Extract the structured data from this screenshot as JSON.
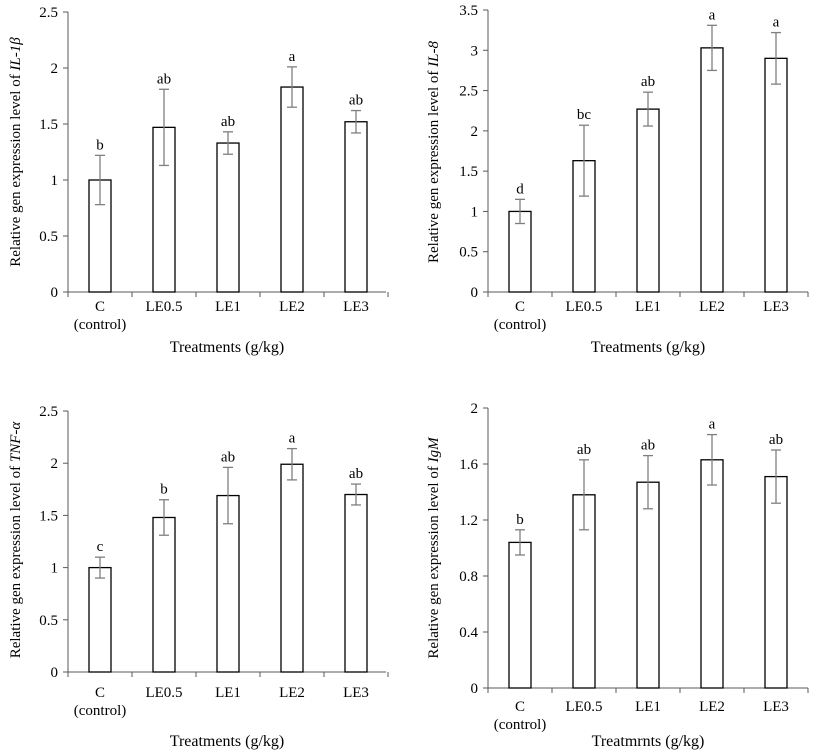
{
  "chart_data": [
    {
      "type": "bar",
      "title": "",
      "ylabel_prefix": "Relative gen expression  level of ",
      "gene": "IL-1β",
      "xlabel": "Treatments (g/kg)",
      "categories": [
        {
          "line1": "C",
          "line2": "(control)"
        },
        {
          "line1": "LE0.5",
          "line2": ""
        },
        {
          "line1": "LE1",
          "line2": ""
        },
        {
          "line1": "LE2",
          "line2": ""
        },
        {
          "line1": "LE3",
          "line2": ""
        }
      ],
      "values": [
        1.0,
        1.47,
        1.33,
        1.83,
        1.52
      ],
      "errors": [
        0.22,
        0.34,
        0.1,
        0.18,
        0.1
      ],
      "letters": [
        "b",
        "ab",
        "ab",
        "a",
        "ab"
      ],
      "ylim": [
        0,
        2.5
      ],
      "yticks": [
        "0",
        "0.5",
        "1",
        "1.5",
        "2",
        "2.5"
      ],
      "letter_color": "#000000"
    },
    {
      "type": "bar",
      "title": "",
      "ylabel_prefix": "Relative gen expression level of ",
      "gene": "IL-8",
      "xlabel": "Treatments (g/kg)",
      "categories": [
        {
          "line1": "C",
          "line2": "(control)"
        },
        {
          "line1": "LE0.5",
          "line2": ""
        },
        {
          "line1": "LE1",
          "line2": ""
        },
        {
          "line1": "LE2",
          "line2": ""
        },
        {
          "line1": "LE3",
          "line2": ""
        }
      ],
      "values": [
        1.0,
        1.63,
        2.27,
        3.03,
        2.9
      ],
      "errors": [
        0.15,
        0.44,
        0.21,
        0.28,
        0.32
      ],
      "letters": [
        "d",
        "bc",
        "ab",
        "a",
        "a"
      ],
      "ylim": [
        0,
        3.5
      ],
      "yticks": [
        "0",
        "0.5",
        "1",
        "1.5",
        "2",
        "2.5",
        "3",
        "3.5"
      ],
      "letter_color": "#666666"
    },
    {
      "type": "bar",
      "title": "",
      "ylabel_prefix": "Relative gen expression level of ",
      "gene": "TNF-α",
      "xlabel": "Treatments (g/kg)",
      "categories": [
        {
          "line1": "C",
          "line2": "(control)"
        },
        {
          "line1": "LE0.5",
          "line2": ""
        },
        {
          "line1": "LE1",
          "line2": ""
        },
        {
          "line1": "LE2",
          "line2": ""
        },
        {
          "line1": "LE3",
          "line2": ""
        }
      ],
      "values": [
        1.0,
        1.48,
        1.69,
        1.99,
        1.7
      ],
      "errors": [
        0.1,
        0.17,
        0.27,
        0.15,
        0.1
      ],
      "letters": [
        "c",
        "b",
        "ab",
        "a",
        "ab"
      ],
      "ylim": [
        0,
        2.5
      ],
      "yticks": [
        "0",
        "0.5",
        "1",
        "1.5",
        "2",
        "2.5"
      ],
      "letter_color": "#666666"
    },
    {
      "type": "bar",
      "title": "",
      "ylabel_prefix": "Relative gen expression level of ",
      "gene": "IgM",
      "xlabel": "Treatmrnts (g/kg)",
      "categories": [
        {
          "line1": "C",
          "line2": "(control)"
        },
        {
          "line1": "LE0.5",
          "line2": ""
        },
        {
          "line1": "LE1",
          "line2": ""
        },
        {
          "line1": "LE2",
          "line2": ""
        },
        {
          "line1": "LE3",
          "line2": ""
        }
      ],
      "values": [
        1.04,
        1.38,
        1.47,
        1.63,
        1.51
      ],
      "errors": [
        0.09,
        0.25,
        0.19,
        0.18,
        0.19
      ],
      "letters": [
        "b",
        "ab",
        "ab",
        "a",
        "ab"
      ],
      "ylim": [
        0,
        2
      ],
      "yticks": [
        "0",
        "0.4",
        "0.8",
        "1.2",
        "1.6",
        "2"
      ],
      "letter_color": "#000000"
    }
  ]
}
